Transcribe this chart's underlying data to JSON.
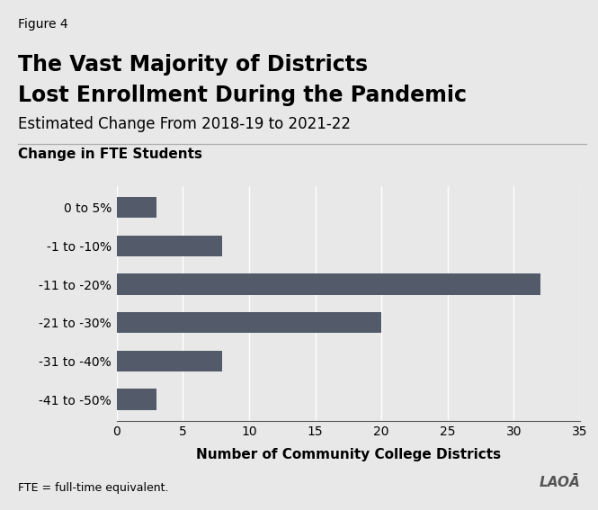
{
  "figure_label": "Figure 4",
  "title_line1": "The Vast Majority of Districts",
  "title_line2": "Lost Enrollment During the Pandemic",
  "subtitle": "Estimated Change From 2018-19 to 2021-22",
  "chart_label": "Change in FTE Students",
  "categories": [
    "0 to 5%",
    "-1 to -10%",
    "-11 to -20%",
    "-21 to -30%",
    "-31 to -40%",
    "-41 to -50%"
  ],
  "values": [
    3,
    8,
    32,
    20,
    8,
    3
  ],
  "bar_color": "#535b6b",
  "xlabel": "Number of Community College Districts",
  "xlim": [
    0,
    35
  ],
  "xticks": [
    0,
    5,
    10,
    15,
    20,
    25,
    30,
    35
  ],
  "footnote": "FTE = full-time equivalent.",
  "background_color": "#e8e8e8",
  "title_fontsize": 17,
  "subtitle_fontsize": 12,
  "figure_label_fontsize": 10,
  "chart_label_fontsize": 11,
  "tick_fontsize": 10,
  "xlabel_fontsize": 11,
  "footnote_fontsize": 9,
  "lao_logo_text": "LAOĀ"
}
